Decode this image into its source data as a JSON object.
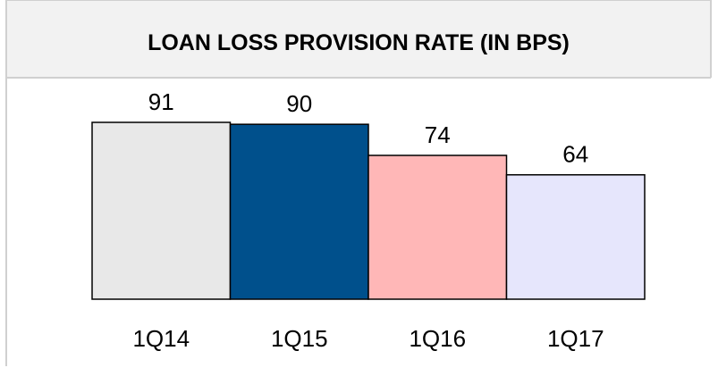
{
  "chart_data": {
    "type": "bar",
    "title": "LOAN LOSS PROVISION RATE (IN BPS)",
    "categories": [
      "1Q14",
      "1Q15",
      "1Q16",
      "1Q17"
    ],
    "values": [
      91,
      90,
      74,
      64
    ],
    "colors": [
      "#e8e8e8",
      "#00508c",
      "#ffb7b7",
      "#e6e6fc"
    ]
  }
}
